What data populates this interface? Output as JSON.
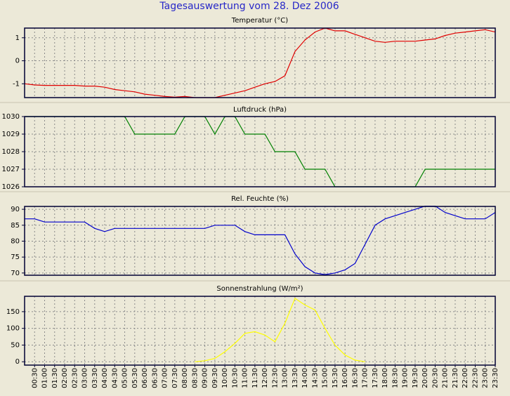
{
  "title": "Tagesauswertung vom 28. Dez 2006",
  "chart_data": [
    {
      "type": "line",
      "title": "Temperatur (°C)",
      "color": "#e00000",
      "ylim": [
        -1.6,
        1.42
      ],
      "yticks": [
        1,
        0,
        -1
      ],
      "grid": true,
      "values": [
        -1.0,
        -1.05,
        -1.07,
        -1.07,
        -1.07,
        -1.07,
        -1.1,
        -1.1,
        -1.15,
        -1.25,
        -1.3,
        -1.35,
        -1.45,
        -1.5,
        -1.55,
        -1.58,
        -1.55,
        -1.6,
        -1.6,
        -1.6,
        -1.5,
        -1.4,
        -1.3,
        -1.15,
        -1.0,
        -0.9,
        -0.65,
        0.4,
        0.9,
        1.25,
        1.42,
        1.3,
        1.3,
        1.15,
        1.0,
        0.85,
        0.8,
        0.85,
        0.85,
        0.85,
        0.9,
        0.95,
        1.1,
        1.2,
        1.25,
        1.3,
        1.35,
        1.25
      ]
    },
    {
      "type": "line",
      "title": "Luftdruck (hPa)",
      "color": "#008000",
      "ylim": [
        1026,
        1030
      ],
      "yticks": [
        1030,
        1029,
        1028,
        1027,
        1026
      ],
      "grid": true,
      "values": [
        1030,
        1030,
        1030,
        1030,
        1030,
        1030,
        1030,
        1030,
        1030,
        1030,
        1030,
        1029,
        1029,
        1029,
        1029,
        1029,
        1030,
        1030,
        1030,
        1029,
        1030,
        1030,
        1029,
        1029,
        1029,
        1028,
        1028,
        1028,
        1027,
        1027,
        1027,
        1026,
        1026,
        1026,
        1026,
        1026,
        1026,
        1026,
        1026,
        1026,
        1027,
        1027,
        1027,
        1027,
        1027,
        1027,
        1027,
        1027
      ]
    },
    {
      "type": "line",
      "title": "Rel. Feuchte (%)",
      "color": "#0000cc",
      "ylim": [
        69.3,
        90.9
      ],
      "yticks": [
        90,
        85,
        80,
        75,
        70
      ],
      "grid": true,
      "values": [
        87,
        87,
        86,
        86,
        86,
        86,
        86,
        84,
        83,
        84,
        84,
        84,
        84,
        84,
        84,
        84,
        84,
        84,
        84,
        85,
        85,
        85,
        83,
        82,
        82,
        82,
        82,
        76,
        72,
        70,
        69.5,
        70,
        71,
        73,
        79,
        85,
        87,
        88,
        89,
        90,
        91,
        91,
        89,
        88,
        87,
        87,
        87,
        89
      ]
    },
    {
      "type": "line",
      "title": "Sonnenstrahlung (W/m²)",
      "color": "#ffff00",
      "ylim": [
        -10,
        196
      ],
      "yticks": [
        150,
        100,
        50,
        0
      ],
      "grid": true,
      "categories": [
        null,
        "00:30",
        "01:00",
        "01:30",
        "02:00",
        "02:30",
        "03:00",
        "03:30",
        "04:00",
        "04:30",
        "05:00",
        "05:30",
        "06:00",
        "06:30",
        "07:00",
        "07:30",
        "08:00",
        "08:30",
        "09:00",
        "09:30",
        "10:00",
        "10:30",
        "11:00",
        "11:30",
        "12:00",
        "12:30",
        "13:00",
        "13:30",
        "14:00",
        "14:30",
        "15:00",
        "15:30",
        "16:00",
        "16:30",
        "17:00",
        "17:30",
        "18:00",
        "18:30",
        "19:00",
        "19:30",
        "20:00",
        "20:30",
        "21:00",
        "21:30",
        "22:00",
        "22:30",
        "23:00",
        "23:30"
      ],
      "values": [
        null,
        null,
        null,
        null,
        null,
        null,
        null,
        null,
        null,
        null,
        null,
        null,
        null,
        null,
        null,
        null,
        null,
        0,
        3,
        10,
        30,
        55,
        85,
        90,
        80,
        60,
        115,
        190,
        170,
        155,
        100,
        50,
        20,
        5,
        0,
        null,
        null,
        null,
        null,
        null,
        null,
        null,
        null,
        null,
        null,
        null,
        null,
        null
      ]
    }
  ]
}
